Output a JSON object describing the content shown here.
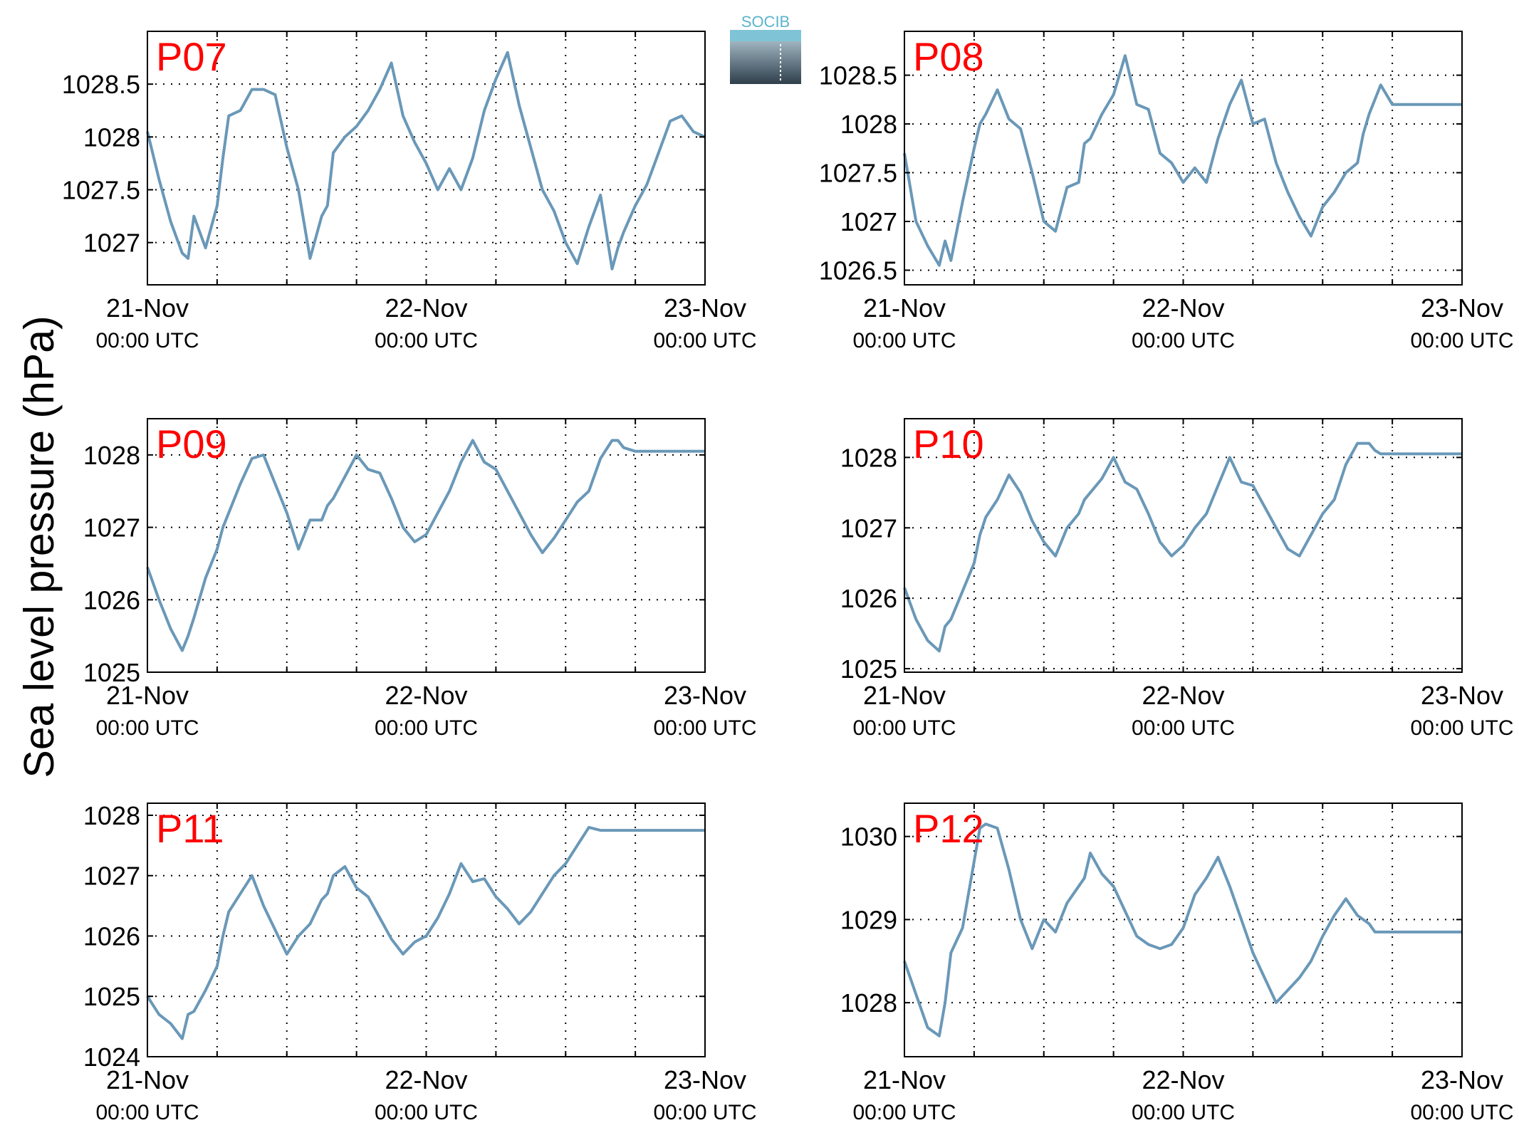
{
  "ylabel": "Sea level pressure (hPa)",
  "logo_text": "SOCIB",
  "colors": {
    "line": "#6a98b8",
    "title": "#ff0000",
    "grid": "#000000"
  },
  "x_ticks": [
    "21-Nov",
    "22-Nov",
    "23-Nov"
  ],
  "x_subticks": [
    "00:00 UTC",
    "00:00 UTC",
    "00:00 UTC"
  ],
  "chart_data": [
    {
      "type": "line",
      "title": "P07",
      "ylim": [
        1026.6,
        1029.0
      ],
      "yticks": [
        1027,
        1027.5,
        1028,
        1028.5
      ],
      "ytick_labels": [
        "1027",
        "1027.5",
        "1028",
        "1028.5"
      ],
      "xlim_hours": [
        0,
        48
      ],
      "grid": true,
      "series": [
        {
          "x": [
            0,
            1,
            2,
            3,
            3.5,
            4,
            5,
            6,
            6.5,
            7,
            8,
            9,
            10,
            11,
            12,
            13,
            14,
            15,
            15.5,
            16,
            17,
            18,
            19,
            20,
            21,
            22,
            23,
            24,
            25,
            26,
            27,
            28,
            29,
            30,
            31,
            32,
            33,
            34,
            35,
            36,
            37,
            38,
            39,
            40,
            40.5,
            41,
            42,
            43,
            44,
            45,
            46,
            47,
            48
          ],
          "y": [
            1028.05,
            1027.6,
            1027.2,
            1026.9,
            1026.85,
            1027.25,
            1026.95,
            1027.35,
            1027.8,
            1028.2,
            1028.25,
            1028.45,
            1028.45,
            1028.4,
            1027.9,
            1027.5,
            1026.85,
            1027.25,
            1027.35,
            1027.85,
            1028.0,
            1028.1,
            1028.25,
            1028.45,
            1028.7,
            1028.2,
            1027.95,
            1027.75,
            1027.5,
            1027.7,
            1027.5,
            1027.8,
            1028.25,
            1028.55,
            1028.8,
            1028.3,
            1027.9,
            1027.5,
            1027.3,
            1027.0,
            1026.8,
            1027.15,
            1027.45,
            1026.75,
            1026.95,
            1027.1,
            1027.35,
            1027.55,
            1027.85,
            1028.15,
            1028.2,
            1028.05,
            1028.0
          ]
        }
      ]
    },
    {
      "type": "line",
      "title": "P08",
      "ylim": [
        1026.35,
        1028.95
      ],
      "yticks": [
        1026.5,
        1027,
        1027.5,
        1028,
        1028.5
      ],
      "ytick_labels": [
        "1026.5",
        "1027",
        "1027.5",
        "1028",
        "1028.5"
      ],
      "xlim_hours": [
        0,
        48
      ],
      "grid": true,
      "series": [
        {
          "x": [
            0,
            1,
            2,
            3,
            3.5,
            4,
            5,
            6,
            6.5,
            7,
            8,
            9,
            10,
            11,
            12,
            13,
            14,
            15,
            15.5,
            16,
            17,
            18,
            19,
            20,
            21,
            22,
            23,
            24,
            25,
            26,
            27,
            28,
            29,
            30,
            31,
            32,
            33,
            34,
            35,
            36,
            37,
            38,
            39,
            39.5,
            40,
            41,
            42,
            43,
            44,
            45,
            46,
            47,
            48
          ],
          "y": [
            1027.7,
            1027.0,
            1026.75,
            1026.55,
            1026.8,
            1026.6,
            1027.2,
            1027.75,
            1028.0,
            1028.1,
            1028.35,
            1028.05,
            1027.95,
            1027.5,
            1027.0,
            1026.9,
            1027.35,
            1027.4,
            1027.8,
            1027.85,
            1028.1,
            1028.3,
            1028.7,
            1028.2,
            1028.15,
            1027.7,
            1027.6,
            1027.4,
            1027.55,
            1027.4,
            1027.85,
            1028.2,
            1028.45,
            1028.0,
            1028.05,
            1027.6,
            1027.3,
            1027.05,
            1026.85,
            1027.15,
            1027.3,
            1027.5,
            1027.6,
            1027.9,
            1028.1,
            1028.4,
            1028.2,
            1028.2,
            1028.2,
            1028.2,
            1028.2,
            1028.2,
            1028.2
          ]
        }
      ]
    },
    {
      "type": "line",
      "title": "P09",
      "ylim": [
        1025.0,
        1028.5
      ],
      "yticks": [
        1025,
        1026,
        1027,
        1028
      ],
      "ytick_labels": [
        "1025",
        "1026",
        "1027",
        "1028"
      ],
      "xlim_hours": [
        0,
        48
      ],
      "grid": true,
      "series": [
        {
          "x": [
            0,
            1,
            2,
            3,
            3.5,
            4,
            5,
            6,
            6.5,
            7,
            8,
            9,
            10,
            11,
            12,
            13,
            14,
            15,
            15.5,
            16,
            17,
            18,
            19,
            20,
            21,
            22,
            23,
            24,
            25,
            26,
            27,
            28,
            29,
            30,
            31,
            32,
            33,
            34,
            35,
            36,
            37,
            38,
            39,
            40,
            40.5,
            41,
            42,
            43,
            44,
            45,
            46,
            47,
            48
          ],
          "y": [
            1026.45,
            1026.0,
            1025.6,
            1025.3,
            1025.5,
            1025.75,
            1026.3,
            1026.7,
            1027.0,
            1027.2,
            1027.6,
            1027.95,
            1028.0,
            1027.6,
            1027.2,
            1026.7,
            1027.1,
            1027.1,
            1027.3,
            1027.4,
            1027.7,
            1028.0,
            1027.8,
            1027.75,
            1027.4,
            1027.0,
            1026.8,
            1026.9,
            1027.2,
            1027.5,
            1027.9,
            1028.2,
            1027.9,
            1027.8,
            1027.5,
            1027.2,
            1026.9,
            1026.65,
            1026.85,
            1027.1,
            1027.35,
            1027.5,
            1027.95,
            1028.2,
            1028.2,
            1028.1,
            1028.05,
            1028.05,
            1028.05,
            1028.05,
            1028.05,
            1028.05,
            1028.05
          ]
        }
      ]
    },
    {
      "type": "line",
      "title": "P10",
      "ylim": [
        1024.95,
        1028.55
      ],
      "yticks": [
        1025,
        1026,
        1027,
        1028
      ],
      "ytick_labels": [
        "1025",
        "1026",
        "1027",
        "1028"
      ],
      "xlim_hours": [
        0,
        48
      ],
      "grid": true,
      "series": [
        {
          "x": [
            0,
            1,
            2,
            3,
            3.5,
            4,
            5,
            6,
            6.5,
            7,
            8,
            9,
            10,
            11,
            12,
            13,
            14,
            15,
            15.5,
            16,
            17,
            18,
            19,
            20,
            21,
            22,
            23,
            24,
            25,
            26,
            27,
            28,
            29,
            30,
            31,
            32,
            33,
            34,
            35,
            36,
            37,
            38,
            39,
            40,
            40.5,
            41,
            42,
            43,
            44,
            45,
            46,
            47,
            48
          ],
          "y": [
            1026.15,
            1025.7,
            1025.4,
            1025.25,
            1025.6,
            1025.7,
            1026.1,
            1026.5,
            1026.9,
            1027.15,
            1027.4,
            1027.75,
            1027.5,
            1027.1,
            1026.8,
            1026.6,
            1027.0,
            1027.2,
            1027.4,
            1027.5,
            1027.7,
            1028.0,
            1027.65,
            1027.55,
            1027.2,
            1026.8,
            1026.6,
            1026.75,
            1027.0,
            1027.2,
            1027.6,
            1028.0,
            1027.65,
            1027.6,
            1027.3,
            1027.0,
            1026.7,
            1026.6,
            1026.9,
            1027.2,
            1027.4,
            1027.9,
            1028.2,
            1028.2,
            1028.1,
            1028.05,
            1028.05,
            1028.05,
            1028.05,
            1028.05,
            1028.05,
            1028.05,
            1028.05
          ]
        }
      ]
    },
    {
      "type": "line",
      "title": "P11",
      "ylim": [
        1024.0,
        1028.2
      ],
      "yticks": [
        1024,
        1025,
        1026,
        1027,
        1028
      ],
      "ytick_labels": [
        "1024",
        "1025",
        "1026",
        "1027",
        "1028"
      ],
      "xlim_hours": [
        0,
        48
      ],
      "grid": true,
      "series": [
        {
          "x": [
            0,
            1,
            2,
            3,
            3.5,
            4,
            5,
            6,
            6.5,
            7,
            8,
            9,
            10,
            11,
            12,
            13,
            14,
            15,
            15.5,
            16,
            17,
            18,
            19,
            20,
            21,
            22,
            23,
            24,
            25,
            26,
            27,
            28,
            29,
            30,
            31,
            32,
            33,
            34,
            35,
            36,
            37,
            38,
            39,
            40,
            40.5,
            41,
            42,
            43,
            44,
            45,
            46,
            47,
            48
          ],
          "y": [
            1025.0,
            1024.7,
            1024.55,
            1024.3,
            1024.7,
            1024.75,
            1025.1,
            1025.5,
            1026.0,
            1026.4,
            1026.7,
            1027.0,
            1026.5,
            1026.1,
            1025.7,
            1026.0,
            1026.2,
            1026.6,
            1026.7,
            1027.0,
            1027.15,
            1026.8,
            1026.65,
            1026.3,
            1025.95,
            1025.7,
            1025.9,
            1026.0,
            1026.3,
            1026.7,
            1027.2,
            1026.9,
            1026.95,
            1026.65,
            1026.45,
            1026.2,
            1026.4,
            1026.7,
            1027.0,
            1027.2,
            1027.5,
            1027.8,
            1027.75,
            1027.75,
            1027.75,
            1027.75,
            1027.75,
            1027.75,
            1027.75,
            1027.75,
            1027.75,
            1027.75,
            1027.75
          ]
        }
      ]
    },
    {
      "type": "line",
      "title": "P12",
      "ylim": [
        1027.35,
        1030.4
      ],
      "yticks": [
        1028,
        1029,
        1030
      ],
      "ytick_labels": [
        "1028",
        "1029",
        "1030"
      ],
      "xlim_hours": [
        0,
        48
      ],
      "grid": true,
      "series": [
        {
          "x": [
            0,
            1,
            2,
            3,
            3.5,
            4,
            5,
            6,
            6.5,
            7,
            8,
            9,
            10,
            11,
            12,
            13,
            14,
            15,
            15.5,
            16,
            17,
            18,
            19,
            20,
            21,
            22,
            23,
            24,
            25,
            26,
            27,
            28,
            29,
            30,
            31,
            32,
            33,
            34,
            35,
            36,
            37,
            38,
            39,
            40,
            40.5,
            41,
            42,
            43,
            44,
            45,
            46,
            47,
            48
          ],
          "y": [
            1028.5,
            1028.1,
            1027.7,
            1027.6,
            1028.0,
            1028.6,
            1028.9,
            1029.7,
            1030.1,
            1030.15,
            1030.1,
            1029.6,
            1029.0,
            1028.65,
            1029.0,
            1028.85,
            1029.2,
            1029.4,
            1029.5,
            1029.8,
            1029.55,
            1029.4,
            1029.1,
            1028.8,
            1028.7,
            1028.65,
            1028.7,
            1028.9,
            1029.3,
            1029.5,
            1029.75,
            1029.4,
            1029.0,
            1028.6,
            1028.3,
            1028.0,
            1028.15,
            1028.3,
            1028.5,
            1028.8,
            1029.05,
            1029.25,
            1029.05,
            1028.95,
            1028.85,
            1028.85,
            1028.85,
            1028.85,
            1028.85,
            1028.85,
            1028.85,
            1028.85,
            1028.85
          ]
        }
      ]
    }
  ]
}
